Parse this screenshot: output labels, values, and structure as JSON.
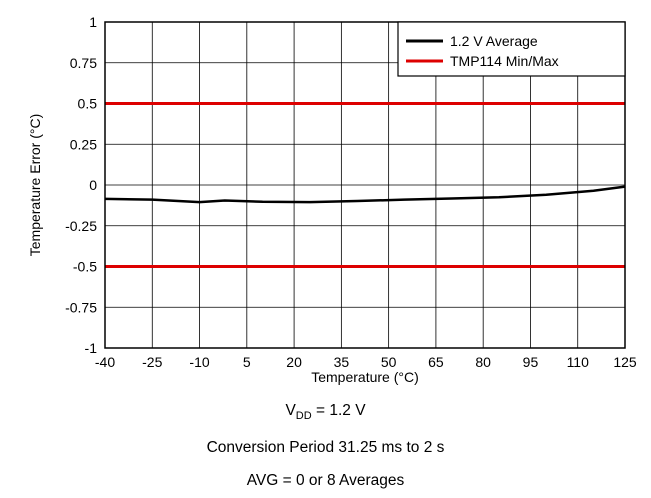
{
  "chart_data": {
    "type": "line",
    "xlabel": "Temperature (°C)",
    "ylabel": "Temperature Error (°C)",
    "xlim": [
      -40,
      125
    ],
    "ylim": [
      -1,
      1
    ],
    "x_ticks": [
      -40,
      -25,
      -10,
      5,
      20,
      35,
      50,
      65,
      80,
      95,
      110,
      125
    ],
    "y_ticks": [
      1,
      0.75,
      0.5,
      0.25,
      0,
      -0.25,
      -0.5,
      -0.75,
      -1
    ],
    "grid": true,
    "legend_position": "top-right",
    "series": [
      {
        "name": "1.2 V Average",
        "color": "#000000",
        "x": [
          -40,
          -25,
          -10,
          -2,
          10,
          25,
          40,
          55,
          70,
          85,
          100,
          115,
          125
        ],
        "y": [
          -0.085,
          -0.09,
          -0.105,
          -0.095,
          -0.103,
          -0.105,
          -0.098,
          -0.09,
          -0.083,
          -0.075,
          -0.06,
          -0.035,
          -0.01
        ]
      },
      {
        "name": "TMP114 Min/Max",
        "color": "#dd0000",
        "lines": [
          {
            "x": [
              -40,
              125
            ],
            "y": [
              0.5,
              0.5
            ]
          },
          {
            "x": [
              -40,
              125
            ],
            "y": [
              -0.5,
              -0.5
            ]
          }
        ]
      }
    ]
  },
  "conditions": {
    "vdd_main": "V",
    "vdd_sub": "DD",
    "vdd_value": "= 1.2 V",
    "period": "Conversion Period 31.25 ms to 2 s",
    "avg": "AVG = 0 or 8 Averages"
  }
}
